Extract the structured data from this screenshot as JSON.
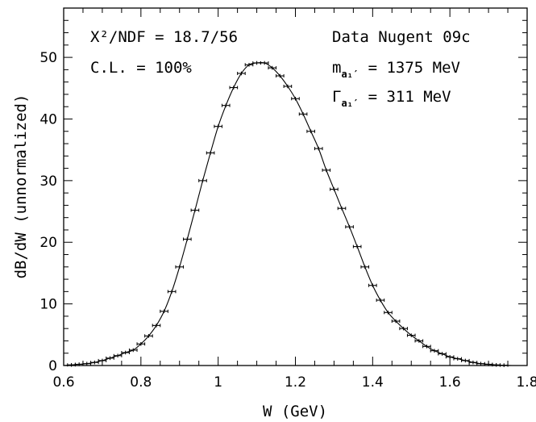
{
  "chart_data": {
    "type": "scatter",
    "xlabel": "W (GeV)",
    "ylabel": "dB/dW (unnormalized)",
    "xlim": [
      0.6,
      1.8
    ],
    "ylim": [
      0,
      58
    ],
    "x_ticks": [
      "0.6",
      "0.8",
      "1",
      "1.2",
      "1.4",
      "1.6",
      "1.8"
    ],
    "y_ticks": [
      "0",
      "10",
      "20",
      "30",
      "40",
      "50"
    ],
    "grid": false,
    "annotations": {
      "chi2": "X²/NDF = 18.7/56",
      "cl": "C.L. = 100%",
      "data": "Data Nugent 09c",
      "mass_label": "m",
      "mass_value": " = 1375 MeV",
      "width_label": "Γ",
      "width_value": " = 311 MeV",
      "subscript": "a₁′"
    },
    "series": [
      {
        "kind": "points_with_errorbars",
        "x_halfwidth": 0.01,
        "y_error": 0.3,
        "x": [
          0.62,
          0.64,
          0.66,
          0.68,
          0.7,
          0.72,
          0.74,
          0.76,
          0.78,
          0.8,
          0.82,
          0.84,
          0.86,
          0.88,
          0.9,
          0.92,
          0.94,
          0.96,
          0.98,
          1.0,
          1.02,
          1.04,
          1.06,
          1.08,
          1.1,
          1.12,
          1.14,
          1.16,
          1.18,
          1.2,
          1.22,
          1.24,
          1.26,
          1.28,
          1.3,
          1.32,
          1.34,
          1.36,
          1.38,
          1.4,
          1.42,
          1.44,
          1.46,
          1.48,
          1.5,
          1.52,
          1.54,
          1.56,
          1.58,
          1.6,
          1.62,
          1.64,
          1.66,
          1.68,
          1.7,
          1.72,
          1.74
        ],
        "y": [
          0.1,
          0.2,
          0.3,
          0.5,
          0.8,
          1.2,
          1.6,
          2.1,
          2.5,
          3.5,
          4.8,
          6.5,
          8.8,
          12,
          16,
          20.5,
          25.2,
          30,
          34.5,
          38.8,
          42.2,
          45.1,
          47.4,
          48.8,
          49.1,
          49.1,
          48.3,
          47,
          45.3,
          43.3,
          40.8,
          38,
          35.2,
          31.7,
          28.6,
          25.5,
          22.5,
          19.3,
          16,
          13,
          10.6,
          8.6,
          7.2,
          6,
          4.9,
          4,
          3.1,
          2.4,
          1.9,
          1.4,
          1.1,
          0.8,
          0.5,
          0.3,
          0.2,
          0.1,
          0.05
        ]
      },
      {
        "kind": "fit_curve",
        "x": [
          0.6,
          0.62,
          0.64,
          0.66,
          0.68,
          0.7,
          0.72,
          0.74,
          0.76,
          0.78,
          0.8,
          0.82,
          0.84,
          0.86,
          0.88,
          0.9,
          0.92,
          0.94,
          0.96,
          0.98,
          1.0,
          1.02,
          1.04,
          1.06,
          1.08,
          1.1,
          1.12,
          1.14,
          1.16,
          1.18,
          1.2,
          1.22,
          1.24,
          1.26,
          1.28,
          1.3,
          1.32,
          1.34,
          1.36,
          1.38,
          1.4,
          1.42,
          1.44,
          1.46,
          1.48,
          1.5,
          1.52,
          1.54,
          1.56,
          1.58,
          1.6,
          1.62,
          1.64,
          1.66,
          1.68,
          1.7,
          1.72,
          1.74,
          1.76
        ],
        "y": [
          0,
          0.1,
          0.2,
          0.3,
          0.5,
          0.8,
          1.2,
          1.6,
          2.1,
          2.5,
          3.5,
          4.8,
          6.5,
          8.8,
          12,
          16,
          20.5,
          25.2,
          30,
          34.5,
          38.8,
          42.2,
          45.1,
          47.4,
          48.8,
          49.1,
          49.1,
          48.3,
          47,
          45.3,
          43.3,
          40.8,
          38,
          35.2,
          31.7,
          28.6,
          25.5,
          22.5,
          19.3,
          16,
          13,
          10.6,
          8.6,
          7.2,
          6,
          4.9,
          4,
          3.1,
          2.4,
          1.9,
          1.4,
          1.1,
          0.8,
          0.5,
          0.3,
          0.2,
          0.1,
          0.05,
          0
        ]
      }
    ]
  }
}
